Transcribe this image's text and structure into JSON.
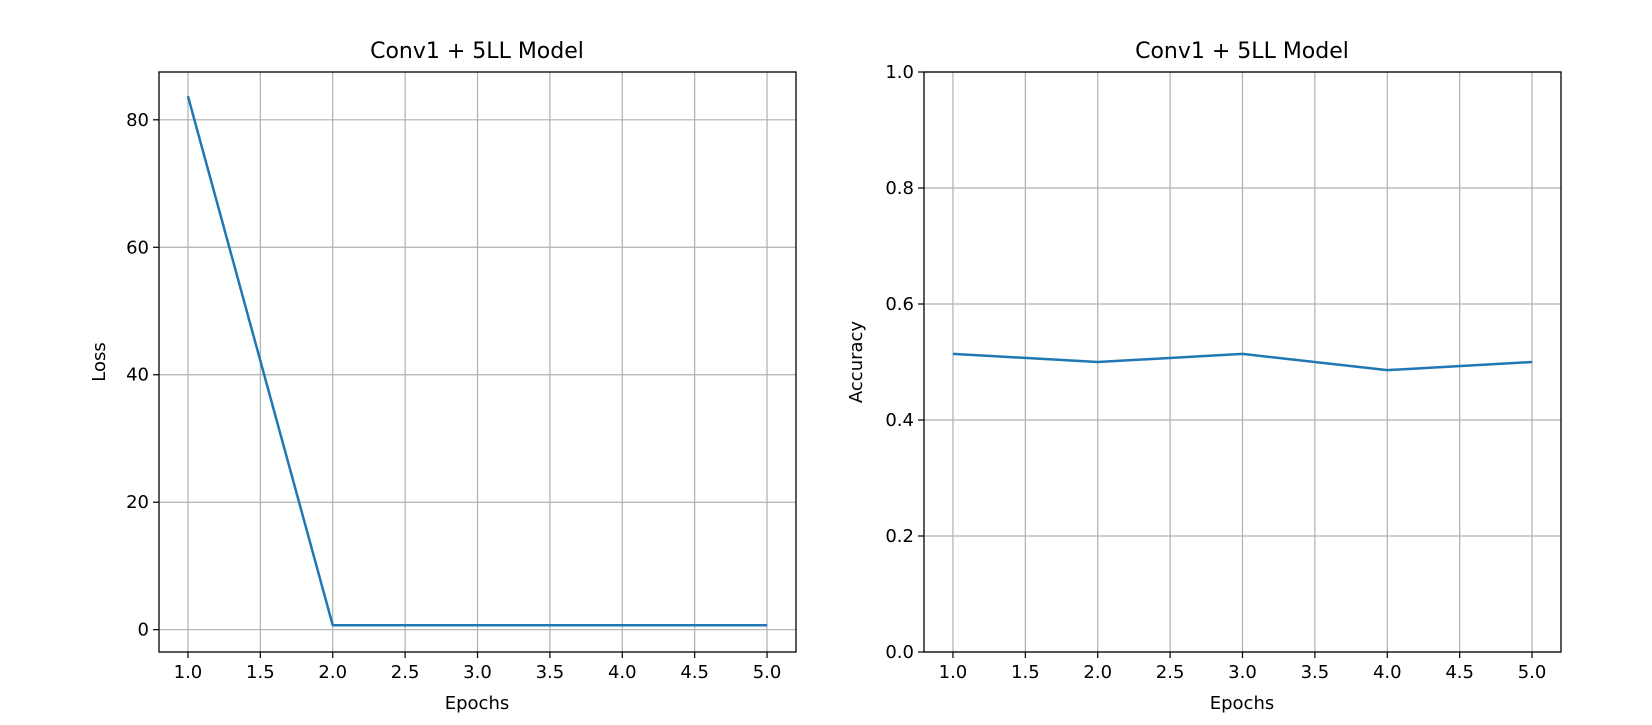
{
  "chart_data": [
    {
      "type": "line",
      "title": "Conv1 + 5LL Model",
      "xlabel": "Epochs",
      "ylabel": "Loss",
      "x": [
        1,
        2,
        3,
        4,
        5
      ],
      "series": [
        {
          "values": [
            83.7,
            0.7,
            0.7,
            0.7,
            0.7
          ],
          "color": "#1f77b4"
        }
      ],
      "xlim": [
        0.8,
        5.2
      ],
      "ylim": [
        -3.5,
        87.5
      ],
      "xticks": [
        1.0,
        1.5,
        2.0,
        2.5,
        3.0,
        3.5,
        4.0,
        4.5,
        5.0
      ],
      "xtick_labels": [
        "1.0",
        "1.5",
        "2.0",
        "2.5",
        "3.0",
        "3.5",
        "4.0",
        "4.5",
        "5.0"
      ],
      "yticks": [
        0,
        20,
        40,
        60,
        80
      ],
      "ytick_labels": [
        "0",
        "20",
        "40",
        "60",
        "80"
      ],
      "grid": true,
      "legend": "none"
    },
    {
      "type": "line",
      "title": "Conv1 + 5LL Model",
      "xlabel": "Epochs",
      "ylabel": "Accuracy",
      "x": [
        1,
        2,
        3,
        4,
        5
      ],
      "series": [
        {
          "values": [
            0.514,
            0.5,
            0.514,
            0.486,
            0.5
          ],
          "color": "#1f77b4"
        }
      ],
      "xlim": [
        0.8,
        5.2
      ],
      "ylim": [
        0.0,
        1.0
      ],
      "xticks": [
        1.0,
        1.5,
        2.0,
        2.5,
        3.0,
        3.5,
        4.0,
        4.5,
        5.0
      ],
      "xtick_labels": [
        "1.0",
        "1.5",
        "2.0",
        "2.5",
        "3.0",
        "3.5",
        "4.0",
        "4.5",
        "5.0"
      ],
      "yticks": [
        0.0,
        0.2,
        0.4,
        0.6,
        0.8,
        1.0
      ],
      "ytick_labels": [
        "0.0",
        "0.2",
        "0.4",
        "0.6",
        "0.8",
        "1.0"
      ],
      "grid": true,
      "legend": "none"
    }
  ]
}
